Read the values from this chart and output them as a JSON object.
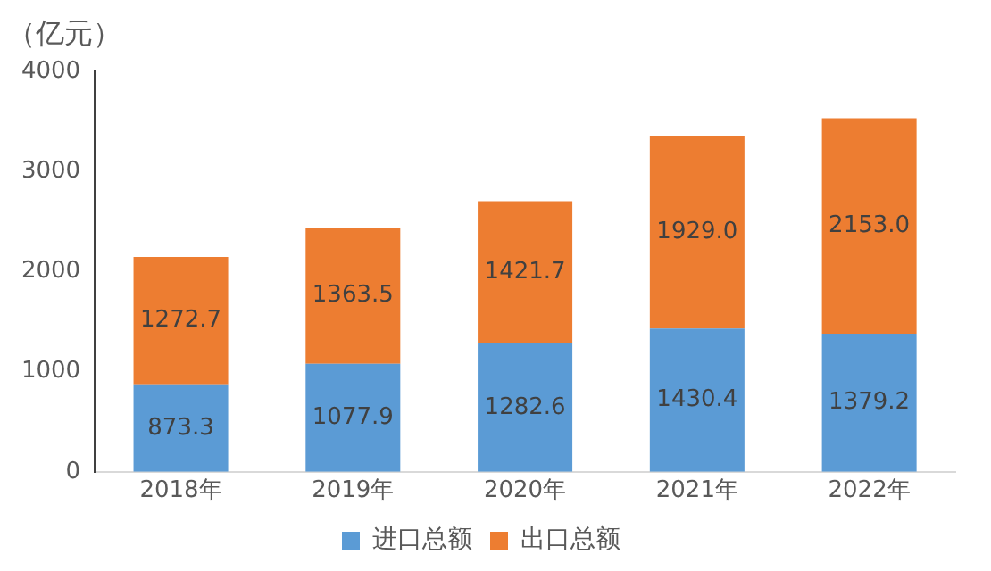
{
  "chart_data": {
    "type": "bar",
    "ylabel": "（亿元）",
    "categories": [
      "2018年",
      "2019年",
      "2020年",
      "2021年",
      "2022年"
    ],
    "stacked": true,
    "ylim": [
      0,
      4000
    ],
    "yticks": [
      0,
      1000,
      2000,
      3000,
      4000
    ],
    "grid": false,
    "legend": "bottom",
    "series": [
      {
        "name": "进口总额",
        "color": "#5b9bd5",
        "values": [
          873.3,
          1077.9,
          1282.6,
          1430.4,
          1379.2
        ],
        "value_labels": [
          "873.3",
          "1077.9",
          "1282.6",
          "1430.4",
          "1379.2"
        ]
      },
      {
        "name": "出口总额",
        "color": "#ed7d31",
        "values": [
          1272.7,
          1363.5,
          1421.7,
          1929.0,
          2153.0
        ],
        "value_labels": [
          "1272.7",
          "1363.5",
          "1421.7",
          "1929.0",
          "2153.0"
        ]
      }
    ]
  }
}
